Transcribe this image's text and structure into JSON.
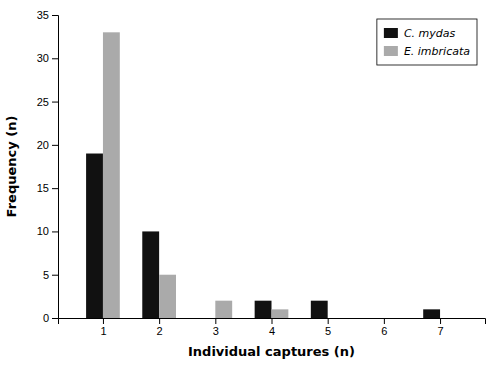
{
  "chart_data": {
    "type": "bar",
    "x": [
      1,
      2,
      3,
      4,
      5,
      6,
      7
    ],
    "xlim": [
      0.2,
      7.8
    ],
    "xticks": [
      1,
      2,
      3,
      4,
      5,
      6,
      7
    ],
    "ylim": [
      0,
      35
    ],
    "yticks": [
      0,
      5,
      10,
      15,
      20,
      25,
      30,
      35
    ],
    "xlabel": "Individual captures (n)",
    "ylabel": "Frequency (n)",
    "series": [
      {
        "name": "C. mydas",
        "color": "#111111",
        "values": [
          19,
          10,
          0,
          2,
          2,
          0,
          1
        ]
      },
      {
        "name": "E. imbricata",
        "color": "#aaaaaa",
        "values": [
          33,
          5,
          2,
          1,
          0,
          0,
          0
        ]
      }
    ],
    "legend": "upper right",
    "grid": false
  }
}
